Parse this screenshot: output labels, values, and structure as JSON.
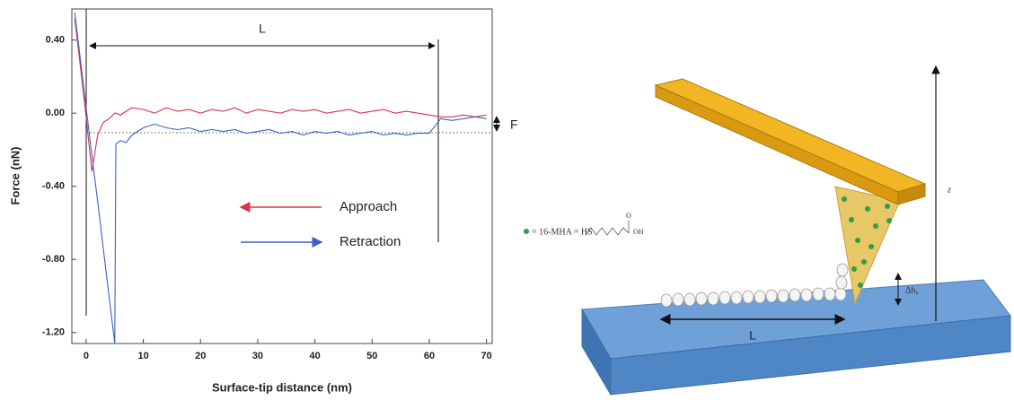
{
  "chart_data": {
    "type": "line",
    "x_label": "Surface-tip distance (nm)",
    "y_label": "Force (nN)",
    "x": [
      -2,
      -1,
      0,
      1,
      2,
      3,
      4,
      5,
      5.2,
      6,
      7,
      8,
      10,
      12,
      14,
      16,
      18,
      20,
      22,
      24,
      26,
      28,
      30,
      32,
      34,
      36,
      38,
      40,
      42,
      44,
      46,
      48,
      50,
      52,
      54,
      56,
      58,
      60,
      62,
      64,
      66,
      68,
      70
    ],
    "series": [
      {
        "name": "Approach",
        "color": "#d9344a",
        "values": [
          0.52,
          0.25,
          -0.02,
          -0.32,
          -0.12,
          -0.05,
          -0.03,
          0.0,
          0.0,
          -0.01,
          0.01,
          0.03,
          0.02,
          0.0,
          0.03,
          0.01,
          0.02,
          0.0,
          0.02,
          0.01,
          0.03,
          0.0,
          0.02,
          0.01,
          0.0,
          0.02,
          0.01,
          0.02,
          0.0,
          0.01,
          0.02,
          0.0,
          0.01,
          0.02,
          0.0,
          0.01,
          0.0,
          -0.01,
          -0.02,
          -0.02,
          -0.01,
          -0.02,
          -0.01
        ]
      },
      {
        "name": "Retraction",
        "color": "#3a62c9",
        "values": [
          0.55,
          0.29,
          0.03,
          -0.23,
          -0.48,
          -0.74,
          -1.0,
          -1.26,
          -0.17,
          -0.15,
          -0.16,
          -0.12,
          -0.08,
          -0.06,
          -0.08,
          -0.09,
          -0.08,
          -0.1,
          -0.09,
          -0.1,
          -0.09,
          -0.11,
          -0.1,
          -0.09,
          -0.11,
          -0.1,
          -0.12,
          -0.1,
          -0.11,
          -0.1,
          -0.12,
          -0.11,
          -0.1,
          -0.12,
          -0.11,
          -0.12,
          -0.11,
          -0.11,
          -0.03,
          -0.04,
          -0.03,
          -0.02,
          -0.03
        ]
      }
    ],
    "xlim": [
      -2.5,
      71
    ],
    "xticks": [
      0,
      10,
      20,
      30,
      40,
      50,
      60,
      70
    ],
    "ylim": [
      -1.26,
      0.57
    ],
    "yticks": [
      {
        "value": 0.4,
        "label": "0.40"
      },
      {
        "value": 0,
        "label": "0.00"
      },
      {
        "value": -0.4,
        "label": "-0.40"
      },
      {
        "value": -0.8,
        "label": "-0.80"
      },
      {
        "value": -1.2,
        "label": "-1.20"
      }
    ],
    "annotations": [
      "L",
      "F"
    ]
  },
  "diagram": {
    "molecule_key": "= 16-MHA = HS",
    "molecule_end": "OH",
    "molecule_oxygen": "O",
    "height_label": "Δh₀",
    "length_label": "L",
    "z_label": "z"
  }
}
